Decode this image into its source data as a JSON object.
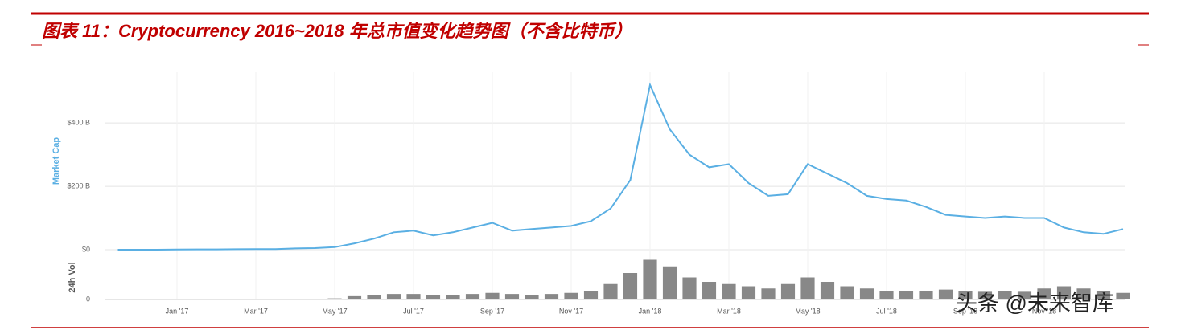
{
  "header": {
    "title": "图表 11：Cryptocurrency 2016~2018 年总市值变化趋势图（不含比特币）"
  },
  "watermark": "头条 @未来智库",
  "chart_data": {
    "type": "line",
    "categories": [
      null,
      null,
      null,
      "Jan '17",
      null,
      null,
      null,
      "Mar '17",
      null,
      null,
      null,
      "May '17",
      null,
      null,
      null,
      "Jul '17",
      null,
      null,
      null,
      "Sep '17",
      null,
      null,
      null,
      "Nov '17",
      null,
      null,
      null,
      "Jan '18",
      null,
      null,
      null,
      "Mar '18",
      null,
      null,
      null,
      "May '18",
      null,
      null,
      null,
      "Jul '18",
      null,
      null,
      null,
      "Sep '18",
      null,
      null,
      null,
      "Nov '18",
      null,
      null,
      null,
      null
    ],
    "series": [
      {
        "name": "Market Cap",
        "color": "#5aafe3",
        "values": [
          0,
          0,
          0,
          0.5,
          1,
          1,
          1.5,
          2,
          2,
          4,
          5,
          8,
          20,
          35,
          55,
          60,
          45,
          55,
          70,
          85,
          60,
          65,
          70,
          75,
          90,
          130,
          220,
          520,
          380,
          300,
          260,
          270,
          210,
          170,
          175,
          270,
          240,
          210,
          170,
          160,
          155,
          135,
          110,
          105,
          100,
          105,
          100,
          100,
          70,
          55,
          50,
          65
        ]
      },
      {
        "name": "24h Vol",
        "color": "#888888",
        "axis": "y2",
        "values": [
          0,
          0,
          0,
          0,
          0,
          0,
          0,
          0,
          0,
          0.2,
          0.3,
          0.5,
          1.5,
          2,
          2.5,
          2.5,
          2,
          2,
          2.5,
          3,
          2.5,
          2,
          2.5,
          3,
          4,
          7,
          12,
          18,
          15,
          10,
          8,
          7,
          6,
          5,
          7,
          10,
          8,
          6,
          5,
          4,
          4,
          4,
          4.5,
          4,
          3.5,
          4,
          3.5,
          5,
          6,
          5,
          4,
          3
        ]
      }
    ],
    "ylim": [
      0,
      560
    ],
    "yticks": [
      {
        "value": 0,
        "label": "$0"
      },
      {
        "value": 200,
        "label": "$200 B"
      },
      {
        "value": 400,
        "label": "$400 B"
      }
    ],
    "y2lim": [
      0,
      20
    ],
    "y2ticks": [
      0
    ],
    "grid": true
  }
}
